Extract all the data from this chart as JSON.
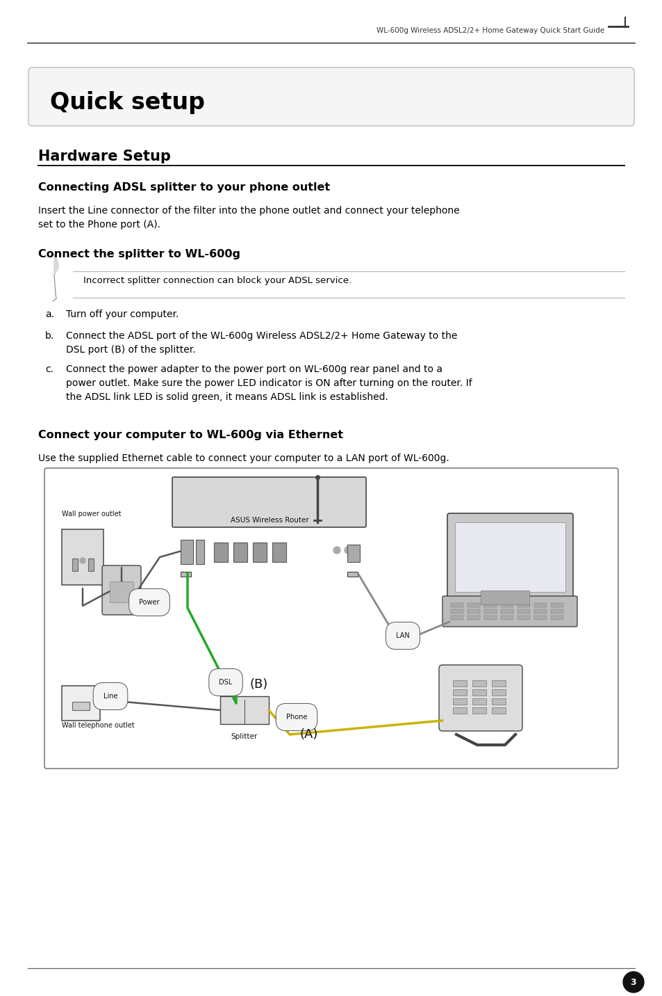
{
  "page_title": "Quick setup",
  "header_text": "WL-600g Wireless ADSL2/2+ Home Gateway Quick Start Guide",
  "section1_title": "Hardware Setup",
  "subsection1_title": "Connecting ADSL splitter to your phone outlet",
  "subsection1_body": "Insert the Line connector of the filter into the phone outlet and connect your telephone\nset to the Phone port (A).",
  "subsection2_title": "Connect the splitter to WL-600g",
  "note_text": "Incorrect splitter connection can block your ADSL service.",
  "list_a": "Turn off your computer.",
  "list_b": "Connect the ADSL port of the WL-600g Wireless ADSL2/2+ Home Gateway to the\nDSL port (B) of the splitter.",
  "list_c": "Connect the power adapter to the power port on WL-600g rear panel and to a\npower outlet. Make sure the power LED indicator is ON after turning on the router. If\nthe ADSL link LED is solid green, it means ADSL link is established.",
  "subsection3_title": "Connect your computer to WL-600g via Ethernet",
  "subsection3_body": "Use the supplied Ethernet cable to connect your computer to a LAN port of WL-600g.",
  "label_wall_power": "Wall power outlet",
  "label_asus_router": "ASUS Wireless Router",
  "label_wall_phone": "Wall telephone outlet",
  "label_splitter": "Splitter",
  "label_power": "Power",
  "label_dsl": "DSL",
  "label_line": "Line",
  "label_lan": "LAN",
  "label_phone": "Phone",
  "label_B": "(B)",
  "label_A": "(A)",
  "page_number": "3",
  "bg_color": "#ffffff",
  "text_color": "#000000"
}
